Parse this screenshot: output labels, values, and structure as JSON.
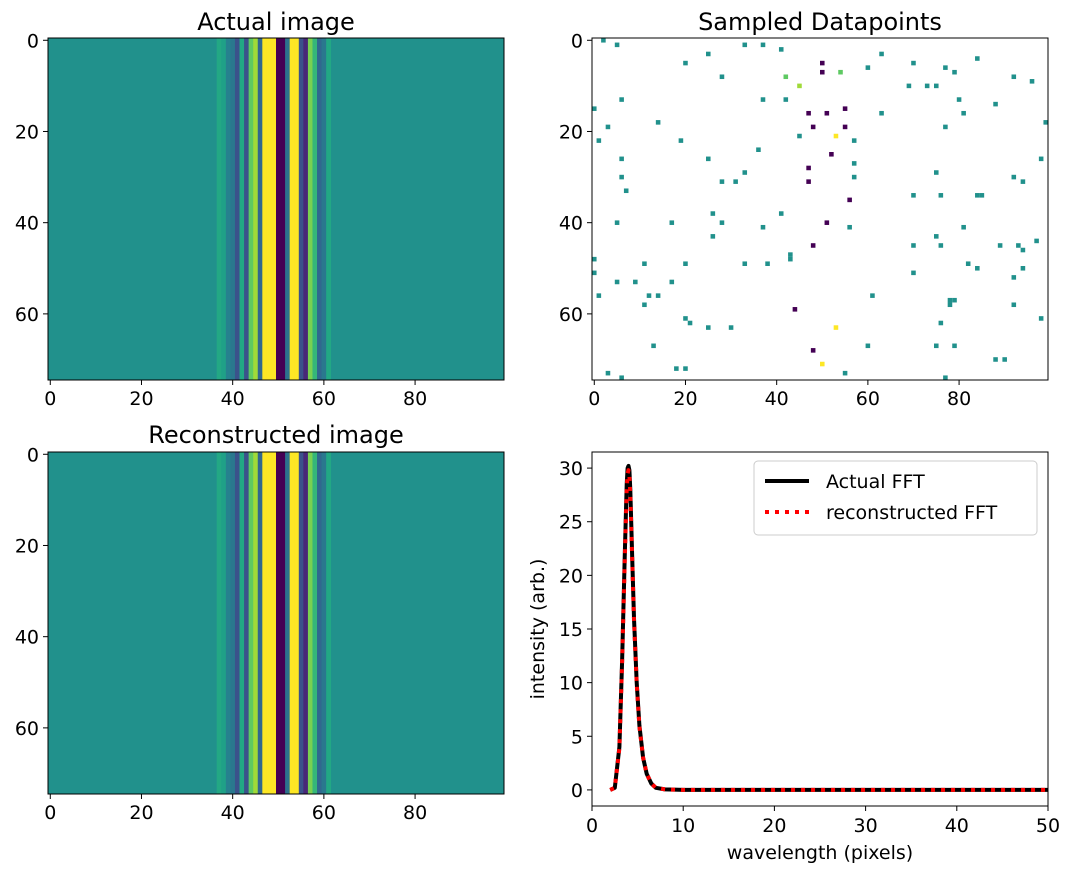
{
  "colors": {
    "background": "#21918c",
    "dark": "#440154",
    "yellow": "#fde725",
    "actual_fft": "#000000",
    "reconstructed_fft": "#ff0000"
  },
  "chart_data": [
    {
      "type": "heatmap",
      "title": "Actual image",
      "x_ticks": [
        "0",
        "20",
        "40",
        "60",
        "80"
      ],
      "y_ticks": [
        "0",
        "20",
        "40",
        "60"
      ],
      "width": 100,
      "height": 75,
      "columns": [
        {
          "x": 37,
          "color": "#23a884"
        },
        {
          "x": 38,
          "color": "#1fa187"
        },
        {
          "x": 39,
          "color": "#26818e"
        },
        {
          "x": 40,
          "color": "#2a788e"
        },
        {
          "x": 41,
          "color": "#3b528b"
        },
        {
          "x": 42,
          "color": "#22a884"
        },
        {
          "x": 43,
          "color": "#3b528b"
        },
        {
          "x": 44,
          "color": "#5ec962"
        },
        {
          "x": 45,
          "color": "#a0da39"
        },
        {
          "x": 46,
          "color": "#31688e"
        },
        {
          "x": 47,
          "color": "#fde725"
        },
        {
          "x": 48,
          "color": "#fde725"
        },
        {
          "x": 49,
          "color": "#fde725"
        },
        {
          "x": 50,
          "color": "#440154"
        },
        {
          "x": 51,
          "color": "#440154"
        },
        {
          "x": 52,
          "color": "#2c728e"
        },
        {
          "x": 53,
          "color": "#fde725"
        },
        {
          "x": 54,
          "color": "#fde725"
        },
        {
          "x": 55,
          "color": "#3b528b"
        },
        {
          "x": 56,
          "color": "#482878"
        },
        {
          "x": 57,
          "color": "#7ad151"
        },
        {
          "x": 58,
          "color": "#35b779"
        },
        {
          "x": 59,
          "color": "#31688e"
        },
        {
          "x": 60,
          "color": "#2a788e"
        },
        {
          "x": 61,
          "color": "#22a884"
        }
      ]
    },
    {
      "type": "heatmap",
      "title": "Sampled Datapoints",
      "x_ticks": [
        "0",
        "20",
        "40",
        "60",
        "80"
      ],
      "y_ticks": [
        "0",
        "20",
        "40",
        "60"
      ],
      "width": 100,
      "height": 75,
      "points": [
        [
          2,
          0,
          "#21918c"
        ],
        [
          5,
          1,
          "#21918c"
        ],
        [
          33,
          1,
          "#21918c"
        ],
        [
          37,
          1,
          "#21918c"
        ],
        [
          41,
          2,
          "#21918c"
        ],
        [
          25,
          3,
          "#21918c"
        ],
        [
          63,
          3,
          "#21918c"
        ],
        [
          20,
          5,
          "#21918c"
        ],
        [
          50,
          5,
          "#440154"
        ],
        [
          70,
          5,
          "#21918c"
        ],
        [
          84,
          4,
          "#21918c"
        ],
        [
          60,
          6,
          "#21918c"
        ],
        [
          77,
          6,
          "#21918c"
        ],
        [
          50,
          7,
          "#440154"
        ],
        [
          54,
          7,
          "#5ec962"
        ],
        [
          79,
          7,
          "#21918c"
        ],
        [
          42,
          8,
          "#5ec962"
        ],
        [
          28,
          8,
          "#21918c"
        ],
        [
          92,
          8,
          "#21918c"
        ],
        [
          96,
          9,
          "#21918c"
        ],
        [
          45,
          10,
          "#a0da39"
        ],
        [
          73,
          10,
          "#21918c"
        ],
        [
          69,
          10,
          "#21918c"
        ],
        [
          75,
          10,
          "#21918c"
        ],
        [
          6,
          13,
          "#21918c"
        ],
        [
          37,
          13,
          "#21918c"
        ],
        [
          42,
          13,
          "#21918c"
        ],
        [
          80,
          13,
          "#21918c"
        ],
        [
          88,
          14,
          "#21918c"
        ],
        [
          0,
          15,
          "#21918c"
        ],
        [
          55,
          15,
          "#440154"
        ],
        [
          47,
          16,
          "#440154"
        ],
        [
          51,
          16,
          "#440154"
        ],
        [
          63,
          16,
          "#21918c"
        ],
        [
          81,
          16,
          "#21918c"
        ],
        [
          14,
          18,
          "#21918c"
        ],
        [
          99,
          18,
          "#21918c"
        ],
        [
          3,
          19,
          "#21918c"
        ],
        [
          48,
          19,
          "#440154"
        ],
        [
          55,
          19,
          "#440154"
        ],
        [
          77,
          19,
          "#21918c"
        ],
        [
          45,
          21,
          "#21918c"
        ],
        [
          53,
          21,
          "#fde725"
        ],
        [
          1,
          22,
          "#21918c"
        ],
        [
          19,
          22,
          "#21918c"
        ],
        [
          57,
          22,
          "#21918c"
        ],
        [
          36,
          24,
          "#21918c"
        ],
        [
          52,
          25,
          "#440154"
        ],
        [
          6,
          26,
          "#21918c"
        ],
        [
          25,
          26,
          "#21918c"
        ],
        [
          57,
          27,
          "#21918c"
        ],
        [
          98,
          26,
          "#21918c"
        ],
        [
          47,
          28,
          "#440154"
        ],
        [
          33,
          29,
          "#21918c"
        ],
        [
          75,
          29,
          "#21918c"
        ],
        [
          57,
          30,
          "#21918c"
        ],
        [
          6,
          30,
          "#21918c"
        ],
        [
          28,
          31,
          "#21918c"
        ],
        [
          31,
          31,
          "#21918c"
        ],
        [
          47,
          31,
          "#440154"
        ],
        [
          92,
          30,
          "#21918c"
        ],
        [
          94,
          31,
          "#21918c"
        ],
        [
          7,
          33,
          "#21918c"
        ],
        [
          70,
          34,
          "#21918c"
        ],
        [
          76,
          34,
          "#21918c"
        ],
        [
          84,
          34,
          "#21918c"
        ],
        [
          85,
          34,
          "#21918c"
        ],
        [
          56,
          35,
          "#440154"
        ],
        [
          26,
          38,
          "#21918c"
        ],
        [
          41,
          38,
          "#21918c"
        ],
        [
          5,
          40,
          "#21918c"
        ],
        [
          17,
          40,
          "#21918c"
        ],
        [
          28,
          40,
          "#21918c"
        ],
        [
          51,
          40,
          "#440154"
        ],
        [
          37,
          41,
          "#21918c"
        ],
        [
          56,
          41,
          "#21918c"
        ],
        [
          81,
          41,
          "#21918c"
        ],
        [
          26,
          43,
          "#21918c"
        ],
        [
          75,
          43,
          "#21918c"
        ],
        [
          48,
          45,
          "#440154"
        ],
        [
          70,
          45,
          "#21918c"
        ],
        [
          76,
          45,
          "#21918c"
        ],
        [
          89,
          45,
          "#21918c"
        ],
        [
          93,
          45,
          "#21918c"
        ],
        [
          97,
          44,
          "#21918c"
        ],
        [
          94,
          46,
          "#21918c"
        ],
        [
          43,
          47,
          "#21918c"
        ],
        [
          43,
          48,
          "#21918c"
        ],
        [
          0,
          48,
          "#21918c"
        ],
        [
          20,
          49,
          "#21918c"
        ],
        [
          33,
          49,
          "#21918c"
        ],
        [
          38,
          49,
          "#21918c"
        ],
        [
          11,
          49,
          "#21918c"
        ],
        [
          82,
          49,
          "#21918c"
        ],
        [
          94,
          50,
          "#21918c"
        ],
        [
          84,
          50,
          "#21918c"
        ],
        [
          0,
          51,
          "#21918c"
        ],
        [
          70,
          51,
          "#21918c"
        ],
        [
          92,
          52,
          "#21918c"
        ],
        [
          5,
          53,
          "#21918c"
        ],
        [
          9,
          53,
          "#21918c"
        ],
        [
          17,
          53,
          "#21918c"
        ],
        [
          14,
          56,
          "#21918c"
        ],
        [
          12,
          56,
          "#21918c"
        ],
        [
          61,
          56,
          "#21918c"
        ],
        [
          1,
          56,
          "#21918c"
        ],
        [
          79,
          57,
          "#21918c"
        ],
        [
          78,
          57,
          "#21918c"
        ],
        [
          78,
          58,
          "#21918c"
        ],
        [
          11,
          58,
          "#21918c"
        ],
        [
          92,
          58,
          "#21918c"
        ],
        [
          44,
          59,
          "#440154"
        ],
        [
          20,
          61,
          "#21918c"
        ],
        [
          98,
          61,
          "#21918c"
        ],
        [
          21,
          62,
          "#21918c"
        ],
        [
          76,
          62,
          "#21918c"
        ],
        [
          25,
          63,
          "#21918c"
        ],
        [
          30,
          63,
          "#21918c"
        ],
        [
          53,
          63,
          "#fde725"
        ],
        [
          13,
          67,
          "#21918c"
        ],
        [
          75,
          67,
          "#21918c"
        ],
        [
          60,
          67,
          "#21918c"
        ],
        [
          79,
          67,
          "#21918c"
        ],
        [
          48,
          68,
          "#440154"
        ],
        [
          88,
          70,
          "#21918c"
        ],
        [
          90,
          70,
          "#21918c"
        ],
        [
          50,
          71,
          "#fde725"
        ],
        [
          18,
          72,
          "#21918c"
        ],
        [
          20,
          72,
          "#21918c"
        ],
        [
          3,
          73,
          "#21918c"
        ],
        [
          55,
          73,
          "#21918c"
        ],
        [
          6,
          74,
          "#21918c"
        ],
        [
          77,
          74,
          "#21918c"
        ]
      ]
    },
    {
      "type": "heatmap",
      "title": "Reconstructed image",
      "x_ticks": [
        "0",
        "20",
        "40",
        "60",
        "80"
      ],
      "y_ticks": [
        "0",
        "20",
        "40",
        "60"
      ],
      "width": 100,
      "height": 75,
      "columns": [
        {
          "x": 37,
          "color": "#23a884"
        },
        {
          "x": 38,
          "color": "#1fa187"
        },
        {
          "x": 39,
          "color": "#26818e"
        },
        {
          "x": 40,
          "color": "#2a788e"
        },
        {
          "x": 41,
          "color": "#3b528b"
        },
        {
          "x": 42,
          "color": "#22a884"
        },
        {
          "x": 43,
          "color": "#3b528b"
        },
        {
          "x": 44,
          "color": "#5ec962"
        },
        {
          "x": 45,
          "color": "#a0da39"
        },
        {
          "x": 46,
          "color": "#31688e"
        },
        {
          "x": 47,
          "color": "#fde725"
        },
        {
          "x": 48,
          "color": "#fde725"
        },
        {
          "x": 49,
          "color": "#fde725"
        },
        {
          "x": 50,
          "color": "#440154"
        },
        {
          "x": 51,
          "color": "#440154"
        },
        {
          "x": 52,
          "color": "#2c728e"
        },
        {
          "x": 53,
          "color": "#fde725"
        },
        {
          "x": 54,
          "color": "#fde725"
        },
        {
          "x": 55,
          "color": "#3b528b"
        },
        {
          "x": 56,
          "color": "#482878"
        },
        {
          "x": 57,
          "color": "#7ad151"
        },
        {
          "x": 58,
          "color": "#35b779"
        },
        {
          "x": 59,
          "color": "#31688e"
        },
        {
          "x": 60,
          "color": "#2a788e"
        },
        {
          "x": 61,
          "color": "#22a884"
        }
      ]
    },
    {
      "type": "line",
      "xlabel": "wavelength (pixels)",
      "ylabel": "intensity (arb.)",
      "xlim": [
        0,
        50
      ],
      "ylim": [
        -1.5,
        31.5
      ],
      "x_ticks": [
        "0",
        "10",
        "20",
        "30",
        "40",
        "50"
      ],
      "y_ticks": [
        "0",
        "5",
        "10",
        "15",
        "20",
        "25",
        "30"
      ],
      "legend_position": "top-right",
      "series": [
        {
          "name": "Actual FFT",
          "style": "solid",
          "x": [
            2.0,
            2.5,
            3.0,
            3.3,
            3.6,
            3.8,
            3.9,
            4.0,
            4.1,
            4.2,
            4.4,
            4.6,
            4.9,
            5.2,
            5.6,
            6.0,
            6.5,
            7.0,
            8.0,
            10.0,
            20.0,
            30.0,
            40.0,
            50.0
          ],
          "y": [
            0.0,
            0.2,
            4.0,
            12.0,
            22.0,
            28.5,
            30.0,
            30.2,
            29.8,
            28.0,
            22.0,
            16.0,
            10.0,
            6.0,
            3.0,
            1.5,
            0.6,
            0.2,
            0.05,
            0.0,
            0.0,
            0.0,
            0.0,
            0.0
          ]
        },
        {
          "name": "reconstructed FFT",
          "style": "dotted",
          "x": [
            2.0,
            2.5,
            3.0,
            3.3,
            3.6,
            3.8,
            3.9,
            4.0,
            4.1,
            4.2,
            4.4,
            4.6,
            4.9,
            5.2,
            5.6,
            6.0,
            6.5,
            7.0,
            8.0,
            10.0,
            20.0,
            30.0,
            40.0,
            50.0
          ],
          "y": [
            0.0,
            0.2,
            3.9,
            11.8,
            21.5,
            28.0,
            29.5,
            29.8,
            29.3,
            27.6,
            21.8,
            15.8,
            9.9,
            5.9,
            3.0,
            1.5,
            0.6,
            0.2,
            0.05,
            0.0,
            0.0,
            0.0,
            0.0,
            0.0
          ]
        }
      ]
    }
  ]
}
